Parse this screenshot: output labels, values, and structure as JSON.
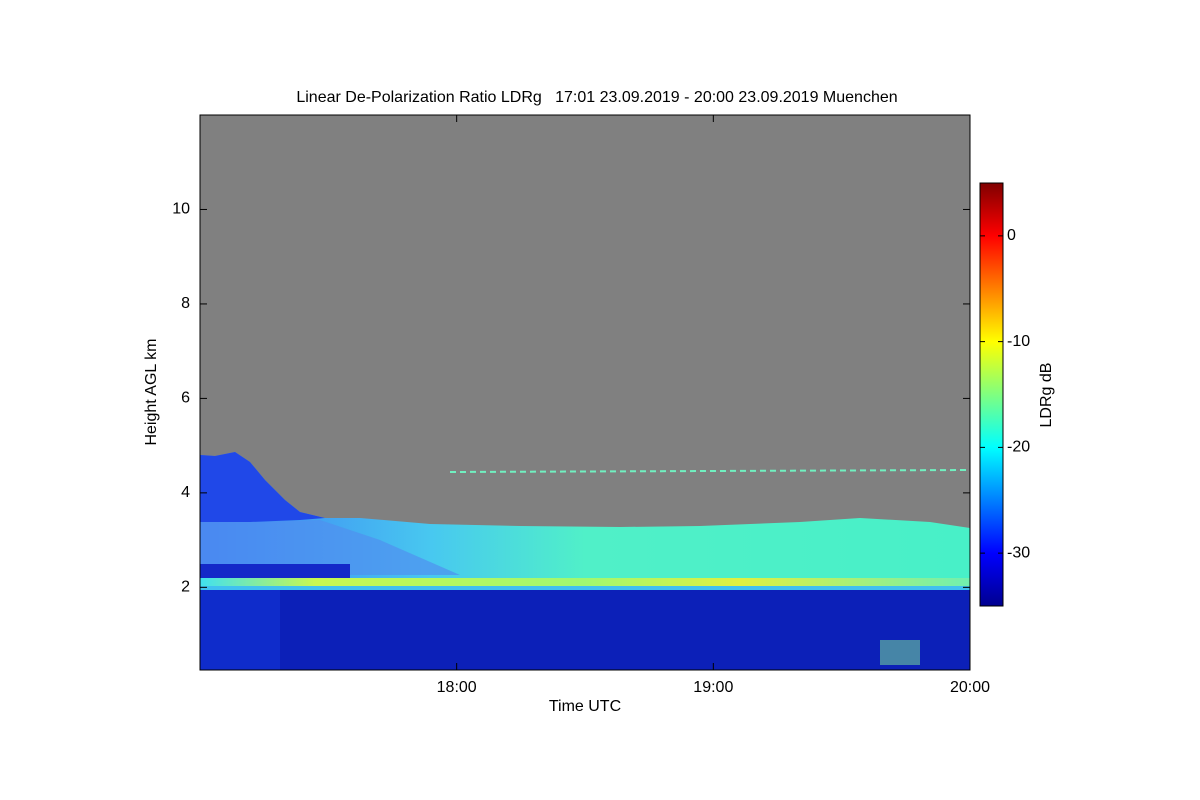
{
  "chart_data": {
    "type": "heatmap",
    "title": "Linear De-Polarization Ratio LDRg   17:01 23.09.2019 - 20:00 23.09.2019 Muenchen",
    "x_label": "Time UTC",
    "y_label": "Height AGL km",
    "colorbar_label": "LDRg dB",
    "colormap": "jet",
    "xlim": [
      17,
      20
    ],
    "xticks": [
      {
        "value": 18,
        "label": "18:00"
      },
      {
        "value": 19,
        "label": "19:00"
      },
      {
        "value": 20,
        "label": "20:00"
      }
    ],
    "ylim": [
      0.25,
      12
    ],
    "yticks": [
      2,
      4,
      6,
      8,
      10
    ],
    "clim": [
      -35,
      5
    ],
    "cticks": [
      -30,
      -20,
      -10,
      0
    ]
  }
}
